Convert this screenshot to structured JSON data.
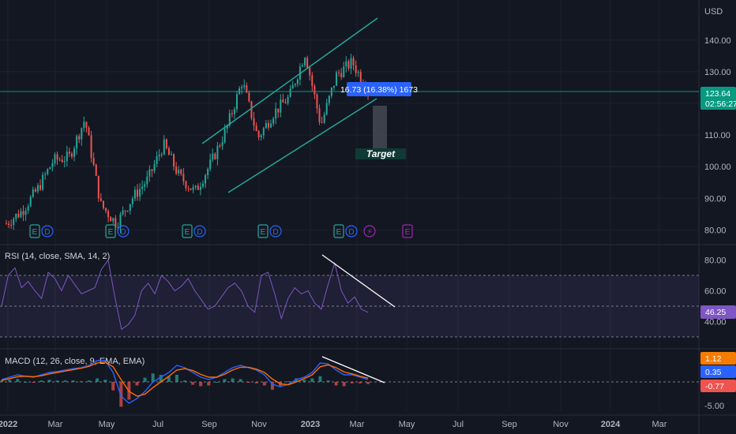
{
  "chart_data": {
    "type": "candlestick",
    "price_axis": {
      "currency_label": "USD",
      "ticks": [
        "140.00",
        "130.00",
        "120.00",
        "110.00",
        "100.00",
        "90.00",
        "80.00"
      ],
      "tick_values": [
        140,
        130,
        120,
        110,
        100,
        90,
        80
      ],
      "range": [
        77,
        150
      ]
    },
    "time_axis": {
      "labels": [
        "2022",
        "Mar",
        "May",
        "Jul",
        "Sep",
        "Nov",
        "2023",
        "Mar",
        "May",
        "Jul",
        "Sep",
        "Nov",
        "2024",
        "Mar"
      ],
      "bold": [
        "2022",
        "2023",
        "2024"
      ]
    },
    "last_price": {
      "value": "123.64",
      "countdown": "02:56:27",
      "color": "#089981"
    },
    "measure_box": {
      "text": "16.73 (16.38%) 1673",
      "color": "#2962ff"
    },
    "target_label": {
      "text": "Target",
      "color": "#0f3a35"
    },
    "channel_color": "#26a69a",
    "events": [
      {
        "icons": [
          "E",
          "D"
        ]
      },
      {
        "icons": [
          "E",
          "D"
        ]
      },
      {
        "icons": [
          "E",
          "D"
        ]
      },
      {
        "icons": [
          "E",
          "D"
        ]
      },
      {
        "icons": [
          "E",
          "D"
        ]
      },
      {
        "icons": [
          "⚡"
        ]
      },
      {
        "icons": [
          "E"
        ]
      }
    ],
    "price_series": [
      [
        "2022-01",
        82
      ],
      [
        "2022-02",
        86
      ],
      [
        "2022-03",
        93
      ],
      [
        "2022-04",
        102
      ],
      [
        "2022-05",
        103
      ],
      [
        "2022-05b",
        115
      ],
      [
        "2022-06",
        88
      ],
      [
        "2022-07",
        82
      ],
      [
        "2022-07b",
        90
      ],
      [
        "2022-08",
        96
      ],
      [
        "2022-09",
        107
      ],
      [
        "2022-09b",
        97
      ],
      [
        "2022-10",
        92
      ],
      [
        "2022-10b",
        101
      ],
      [
        "2022-11",
        112
      ],
      [
        "2022-12",
        127
      ],
      [
        "2022-12b",
        109
      ],
      [
        "2023-01",
        117
      ],
      [
        "2023-01b",
        122
      ],
      [
        "2023-02",
        136
      ],
      [
        "2023-02b",
        113
      ],
      [
        "2023-03",
        129
      ],
      [
        "2023-03b",
        133
      ],
      [
        "2023-03c",
        124
      ]
    ],
    "rsi": {
      "title": "RSI (14, close, SMA, 14, 2)",
      "ticks": [
        "80.00",
        "60.00",
        "40.00"
      ],
      "tick_values": [
        80,
        60,
        40
      ],
      "last": "46.25",
      "band": [
        30,
        70
      ],
      "mid": 50,
      "color": "#7e57c2",
      "values": [
        50,
        70,
        75,
        62,
        66,
        60,
        55,
        72,
        68,
        60,
        70,
        64,
        58,
        60,
        62,
        74,
        80,
        56,
        35,
        38,
        44,
        60,
        65,
        58,
        70,
        66,
        60,
        63,
        68,
        60,
        54,
        48,
        50,
        56,
        62,
        65,
        60,
        50,
        46,
        70,
        72,
        58,
        42,
        55,
        62,
        58,
        60,
        52,
        48,
        64,
        78,
        60,
        52,
        56,
        48,
        46
      ]
    },
    "macd": {
      "title": "MACD (12, 26, close, 9, EMA, EMA)",
      "ticks": [
        "-5.00"
      ],
      "tick_values": [
        -5
      ],
      "values_badges": [
        "1.12",
        "0.35",
        "-0.77"
      ],
      "badge_colors": [
        "#f57c00",
        "#2962ff",
        "#ef5350"
      ],
      "macd_color": "#2962ff",
      "signal_color": "#ff6d00",
      "macd": [
        0.5,
        1,
        1.5,
        1.2,
        1,
        1.5,
        2,
        2.2,
        2.5,
        2.8,
        3,
        3.5,
        4.5,
        4.5,
        2,
        -3,
        -4.5,
        -3.5,
        -2,
        0,
        1,
        2,
        3.5,
        3,
        2,
        1,
        0.5,
        1,
        2,
        3,
        3.5,
        3,
        2.5,
        1.5,
        -0.5,
        -1,
        -0.5,
        0.5,
        1,
        2,
        4,
        3.8,
        2.5,
        1.5,
        1.5,
        1,
        0.5
      ],
      "signal": [
        0.3,
        0.7,
        1.1,
        1.2,
        1.1,
        1.3,
        1.7,
        2,
        2.3,
        2.6,
        2.9,
        3.3,
        4,
        4.2,
        3.2,
        0.5,
        -2,
        -3,
        -2.6,
        -1.2,
        0,
        1.2,
        2.5,
        2.8,
        2.4,
        1.6,
        1,
        1,
        1.6,
        2.5,
        3.1,
        3.1,
        2.7,
        2,
        0.6,
        -0.4,
        -0.6,
        0,
        0.7,
        1.5,
        3.2,
        3.6,
        3,
        2.1,
        1.7,
        1.2,
        0.8
      ]
    }
  }
}
